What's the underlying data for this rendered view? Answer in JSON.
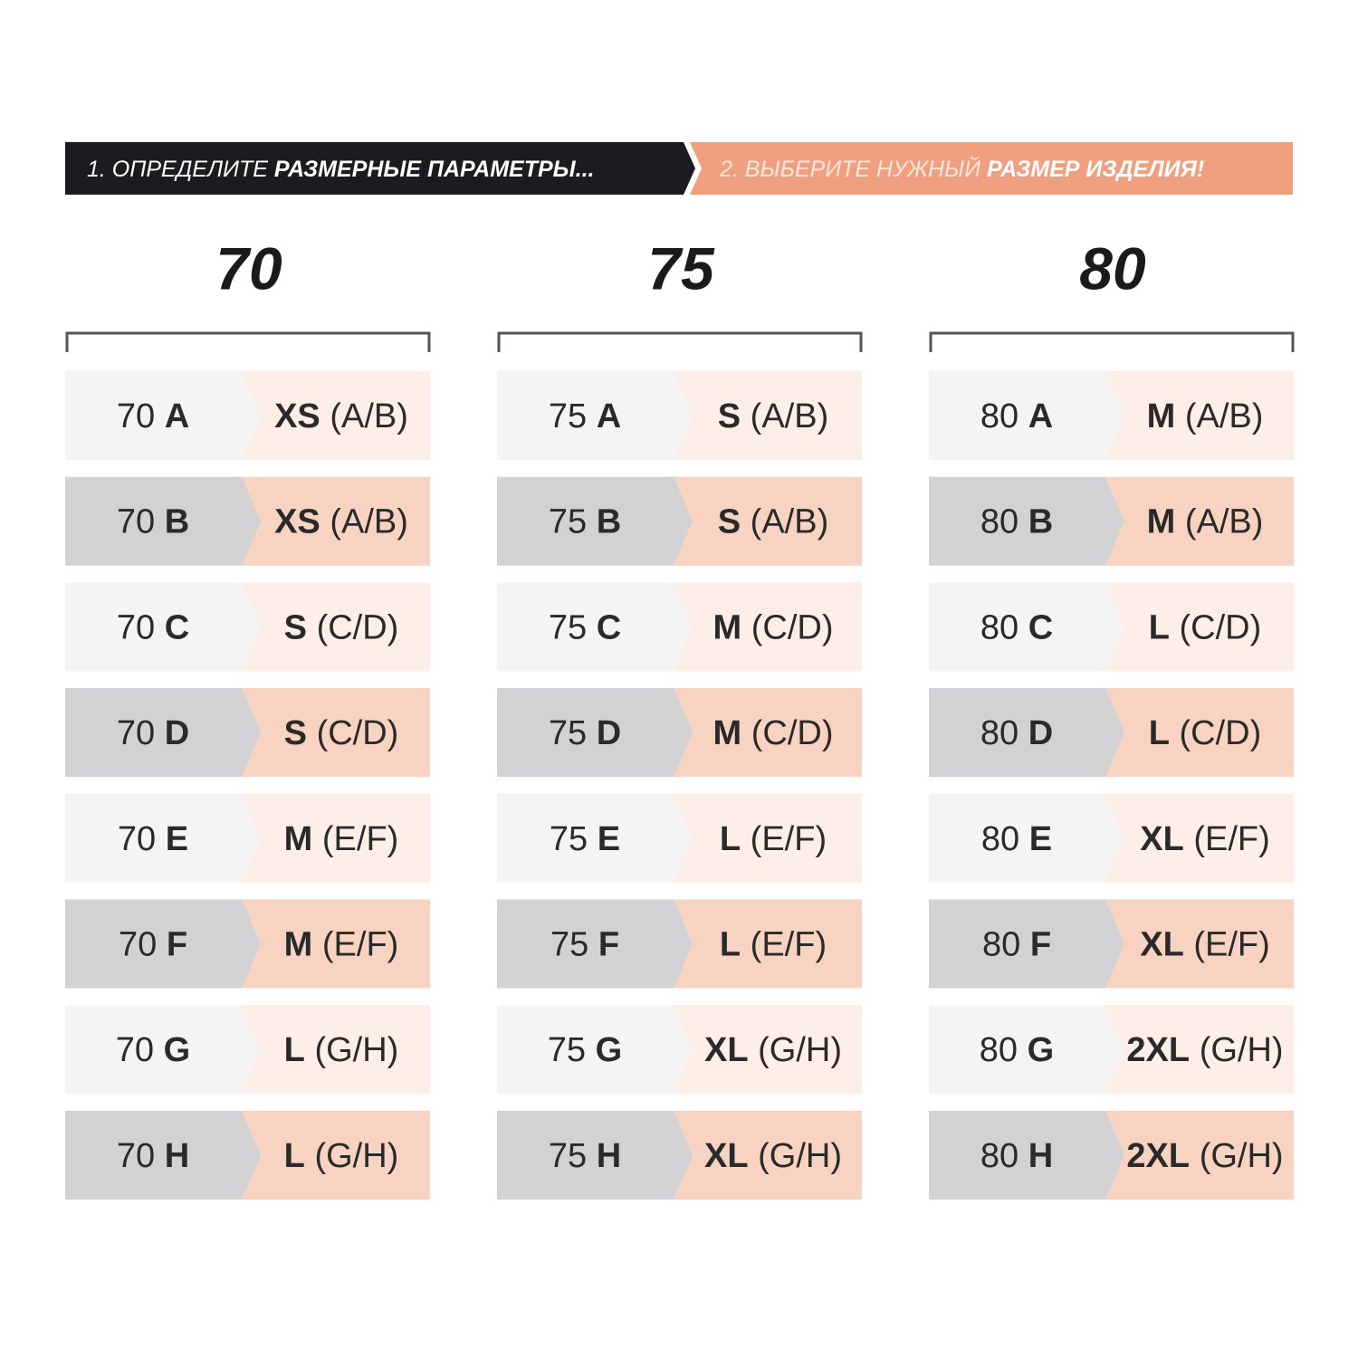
{
  "header": {
    "step1": {
      "prefix": "1. ОПРЕДЕЛИТЕ",
      "bold": "РАЗМЕРНЫЕ ПАРАМЕТРЫ..."
    },
    "step2": {
      "prefix": "2. ВЫБЕРИТЕ НУЖНЫЙ",
      "bold": "РАЗМЕР ИЗДЕЛИЯ!"
    }
  },
  "columns": [
    {
      "title": "70",
      "rows": [
        {
          "band": "70",
          "cup": "A",
          "size": "XS",
          "fit": "(A/B)"
        },
        {
          "band": "70",
          "cup": "B",
          "size": "XS",
          "fit": "(A/B)"
        },
        {
          "band": "70",
          "cup": "C",
          "size": "S",
          "fit": "(C/D)"
        },
        {
          "band": "70",
          "cup": "D",
          "size": "S",
          "fit": "(C/D)"
        },
        {
          "band": "70",
          "cup": "E",
          "size": "M",
          "fit": "(E/F)"
        },
        {
          "band": "70",
          "cup": "F",
          "size": "M",
          "fit": "(E/F)"
        },
        {
          "band": "70",
          "cup": "G",
          "size": "L",
          "fit": "(G/H)"
        },
        {
          "band": "70",
          "cup": "H",
          "size": "L",
          "fit": "(G/H)"
        }
      ]
    },
    {
      "title": "75",
      "rows": [
        {
          "band": "75",
          "cup": "A",
          "size": "S",
          "fit": "(A/B)"
        },
        {
          "band": "75",
          "cup": "B",
          "size": "S",
          "fit": "(A/B)"
        },
        {
          "band": "75",
          "cup": "C",
          "size": "M",
          "fit": "(C/D)"
        },
        {
          "band": "75",
          "cup": "D",
          "size": "M",
          "fit": "(C/D)"
        },
        {
          "band": "75",
          "cup": "E",
          "size": "L",
          "fit": "(E/F)"
        },
        {
          "band": "75",
          "cup": "F",
          "size": "L",
          "fit": "(E/F)"
        },
        {
          "band": "75",
          "cup": "G",
          "size": "XL",
          "fit": "(G/H)"
        },
        {
          "band": "75",
          "cup": "H",
          "size": "XL",
          "fit": "(G/H)"
        }
      ]
    },
    {
      "title": "80",
      "rows": [
        {
          "band": "80",
          "cup": "A",
          "size": "M",
          "fit": "(A/B)"
        },
        {
          "band": "80",
          "cup": "B",
          "size": "M",
          "fit": "(A/B)"
        },
        {
          "band": "80",
          "cup": "C",
          "size": "L",
          "fit": "(C/D)"
        },
        {
          "band": "80",
          "cup": "D",
          "size": "L",
          "fit": "(C/D)"
        },
        {
          "band": "80",
          "cup": "E",
          "size": "XL",
          "fit": "(E/F)"
        },
        {
          "band": "80",
          "cup": "F",
          "size": "XL",
          "fit": "(E/F)"
        },
        {
          "band": "80",
          "cup": "G",
          "size": "2XL",
          "fit": "(G/H)"
        },
        {
          "band": "80",
          "cup": "H",
          "size": "2XL",
          "fit": "(G/H)"
        }
      ]
    }
  ]
}
